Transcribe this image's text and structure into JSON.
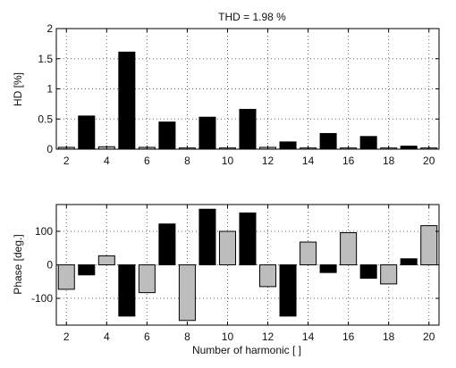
{
  "chart_data": [
    {
      "type": "bar",
      "title": "THD = 1.98 %",
      "xlabel": "",
      "ylabel": "HD [%]",
      "x": [
        2,
        3,
        4,
        5,
        6,
        7,
        8,
        9,
        10,
        11,
        12,
        13,
        14,
        15,
        16,
        17,
        18,
        19,
        20
      ],
      "values": [
        0.03,
        0.55,
        0.04,
        1.61,
        0.03,
        0.45,
        0.02,
        0.53,
        0.02,
        0.66,
        0.03,
        0.12,
        0.02,
        0.26,
        0.02,
        0.21,
        0.02,
        0.05,
        0.02
      ],
      "ylim": [
        0,
        2
      ],
      "xlim": [
        1.5,
        20.5
      ],
      "yticks": [
        0,
        0.5,
        1,
        1.5,
        2
      ],
      "ytick_labels": [
        "0",
        "0.5",
        "1",
        "1.5",
        "2"
      ],
      "xticks": [
        2,
        4,
        6,
        8,
        10,
        12,
        14,
        16,
        18,
        20
      ],
      "grid": true,
      "colors": {
        "odd": "#000000",
        "even": "#bdbdbd"
      }
    },
    {
      "type": "bar",
      "title": "",
      "xlabel": "Number of harmonic [ ]",
      "ylabel": "Phase [deg.]",
      "x": [
        2,
        3,
        4,
        5,
        6,
        7,
        8,
        9,
        10,
        11,
        12,
        13,
        14,
        15,
        16,
        17,
        18,
        19,
        20
      ],
      "values": [
        -73,
        -30,
        27,
        -153,
        -83,
        122,
        -166,
        166,
        100,
        155,
        -65,
        -153,
        68,
        -23,
        96,
        -40,
        -57,
        18,
        117
      ],
      "ylim": [
        -180,
        180
      ],
      "xlim": [
        1.5,
        20.5
      ],
      "yticks": [
        -100,
        0,
        100
      ],
      "ytick_labels": [
        "-100",
        "0",
        "100"
      ],
      "xticks": [
        2,
        4,
        6,
        8,
        10,
        12,
        14,
        16,
        18,
        20
      ],
      "grid": true,
      "colors": {
        "odd": "#000000",
        "even": "#bdbdbd"
      }
    }
  ]
}
